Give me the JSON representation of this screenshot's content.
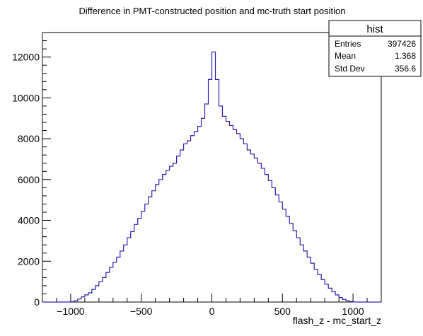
{
  "chart_data": {
    "type": "bar",
    "title": "Difference in PMT-constructed position and mc-truth start position",
    "xlabel": "flash_z - mc_start_z",
    "ylabel": "",
    "xlim": [
      -1200,
      1200
    ],
    "ylim": [
      0,
      13200
    ],
    "bin_width": 25,
    "x_ticks": [
      -1000,
      -500,
      0,
      500,
      1000
    ],
    "x_tick_labels": [
      "−1000",
      "−500",
      "0",
      "500",
      "1000"
    ],
    "y_ticks": [
      0,
      2000,
      4000,
      6000,
      8000,
      10000,
      12000
    ],
    "y_tick_labels": [
      "0",
      "2000",
      "4000",
      "6000",
      "8000",
      "10000",
      "12000"
    ],
    "line_color": "#2c1fb0",
    "grid": false,
    "bins": [
      [
        -1200,
        0
      ],
      [
        -1175,
        0
      ],
      [
        -1150,
        0
      ],
      [
        -1125,
        0
      ],
      [
        -1100,
        0
      ],
      [
        -1075,
        0
      ],
      [
        -1050,
        0
      ],
      [
        -1025,
        0
      ],
      [
        -1000,
        20
      ],
      [
        -975,
        60
      ],
      [
        -950,
        150
      ],
      [
        -925,
        250
      ],
      [
        -900,
        350
      ],
      [
        -875,
        450
      ],
      [
        -850,
        620
      ],
      [
        -825,
        800
      ],
      [
        -800,
        1000
      ],
      [
        -775,
        1200
      ],
      [
        -750,
        1450
      ],
      [
        -725,
        1700
      ],
      [
        -700,
        1950
      ],
      [
        -675,
        2200
      ],
      [
        -650,
        2500
      ],
      [
        -625,
        2800
      ],
      [
        -600,
        3150
      ],
      [
        -575,
        3450
      ],
      [
        -550,
        3800
      ],
      [
        -525,
        4100
      ],
      [
        -500,
        4450
      ],
      [
        -475,
        4800
      ],
      [
        -450,
        5150
      ],
      [
        -425,
        5450
      ],
      [
        -400,
        5750
      ],
      [
        -375,
        6000
      ],
      [
        -350,
        6250
      ],
      [
        -325,
        6450
      ],
      [
        -300,
        6650
      ],
      [
        -275,
        6800
      ],
      [
        -250,
        7150
      ],
      [
        -225,
        7450
      ],
      [
        -200,
        7750
      ],
      [
        -175,
        7900
      ],
      [
        -150,
        8150
      ],
      [
        -125,
        8350
      ],
      [
        -100,
        8600
      ],
      [
        -75,
        9000
      ],
      [
        -50,
        9700
      ],
      [
        -25,
        10900
      ],
      [
        0,
        12250
      ],
      [
        25,
        10900
      ],
      [
        50,
        9600
      ],
      [
        75,
        9100
      ],
      [
        100,
        8850
      ],
      [
        125,
        8650
      ],
      [
        150,
        8450
      ],
      [
        175,
        8250
      ],
      [
        200,
        8000
      ],
      [
        225,
        7750
      ],
      [
        250,
        7450
      ],
      [
        275,
        7250
      ],
      [
        300,
        7050
      ],
      [
        325,
        6800
      ],
      [
        350,
        6550
      ],
      [
        375,
        6250
      ],
      [
        400,
        5950
      ],
      [
        425,
        5600
      ],
      [
        450,
        5250
      ],
      [
        475,
        4900
      ],
      [
        500,
        4550
      ],
      [
        525,
        4200
      ],
      [
        550,
        3850
      ],
      [
        575,
        3500
      ],
      [
        600,
        3150
      ],
      [
        625,
        2800
      ],
      [
        650,
        2500
      ],
      [
        675,
        2200
      ],
      [
        700,
        1900
      ],
      [
        725,
        1600
      ],
      [
        750,
        1350
      ],
      [
        775,
        1100
      ],
      [
        800,
        880
      ],
      [
        825,
        680
      ],
      [
        850,
        500
      ],
      [
        875,
        350
      ],
      [
        900,
        220
      ],
      [
        925,
        130
      ],
      [
        950,
        60
      ],
      [
        975,
        25
      ],
      [
        1000,
        5
      ],
      [
        1025,
        0
      ],
      [
        1050,
        0
      ],
      [
        1075,
        0
      ],
      [
        1100,
        0
      ],
      [
        1125,
        0
      ],
      [
        1150,
        0
      ],
      [
        1175,
        0
      ]
    ],
    "legend": {
      "placement": "top-right",
      "title": "hist",
      "rows": [
        {
          "label": "Entries",
          "value": "397426"
        },
        {
          "label": "Mean",
          "value": "1.368"
        },
        {
          "label": "Std Dev",
          "value": "356.6"
        }
      ]
    }
  }
}
